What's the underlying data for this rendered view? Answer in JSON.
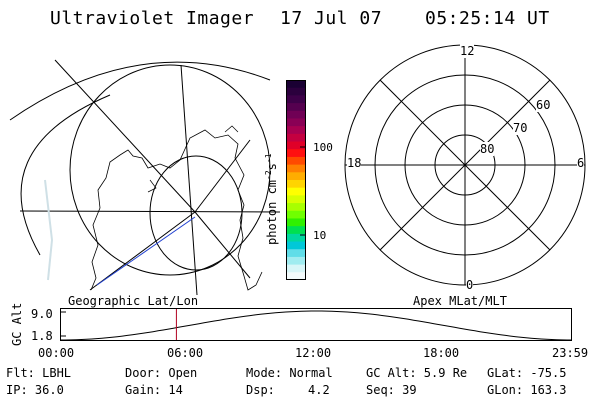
{
  "header": {
    "title": "Ultraviolet Imager",
    "date": "17 Jul 07",
    "time": "05:25:14 UT"
  },
  "colorbar": {
    "label": "photon cm",
    "label_sup1": "-2",
    "label_s": "s",
    "label_sup2": "-1",
    "ticks": [
      "100",
      "10"
    ],
    "colors": [
      "#1a0033",
      "#2b003d",
      "#3d0048",
      "#55004f",
      "#700055",
      "#8a0055",
      "#a80050",
      "#c40040",
      "#e00028",
      "#ff1010",
      "#ff4a00",
      "#ff8000",
      "#ffad00",
      "#ffd400",
      "#ffff00",
      "#d8ff00",
      "#a8ff00",
      "#70ff00",
      "#30f000",
      "#00e050",
      "#00d8a0",
      "#00c8d8",
      "#60dde8",
      "#a0ecf0",
      "#d8f6f8",
      "#f4fbfc"
    ]
  },
  "map_left": {
    "caption": "Geographic Lat/Lon"
  },
  "map_right": {
    "caption": "Apex MLat/MLT",
    "mlt_labels": {
      "top": "12",
      "left": "18",
      "right": "6",
      "bottom": "0"
    },
    "mlat_labels": [
      "60",
      "70",
      "80"
    ]
  },
  "altitude_strip": {
    "ylabel": "GC Alt",
    "yticks": [
      "9.0",
      "1.8"
    ],
    "xticks": [
      "00:00",
      "06:00",
      "12:00",
      "18:00",
      "23:59"
    ],
    "current_time_hours": 5.42
  },
  "footer": {
    "filter": "Flt: LBHL",
    "door": "Door: Open",
    "mode": "Mode: Normal",
    "gc_alt": "GC Alt: 5.9 Re",
    "glat": "GLat: -75.5",
    "ip": "IP: 36.0",
    "gain": "Gain: 14",
    "dsp_label": "Dsp:",
    "dsp_value": "4.2",
    "seq": "Seq: 39",
    "glon": "GLon: 163.3"
  }
}
